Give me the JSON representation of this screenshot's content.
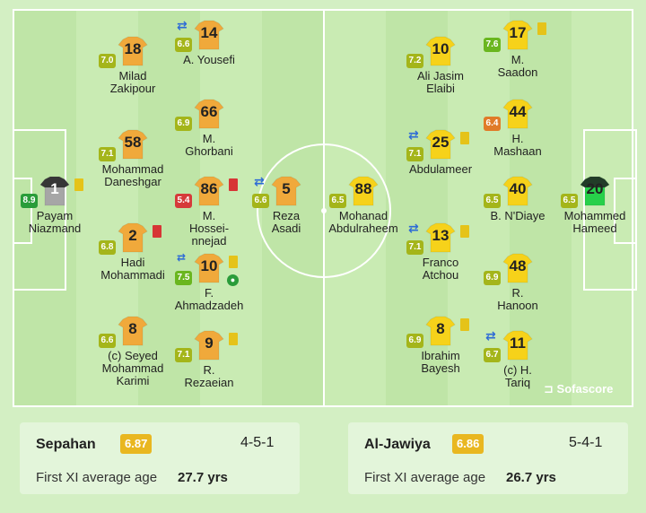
{
  "players": [
    {
      "num": "1",
      "name": [
        "Payam",
        "Niazmand"
      ],
      "rating": "8.9",
      "rcls": "r-dgreen",
      "kit": "grey",
      "card": "yellow",
      "sub": false
    },
    {
      "num": "18",
      "name": [
        "Milad",
        "Zakipour"
      ],
      "rating": "7.0",
      "rcls": "r-olive",
      "kit": "orange",
      "card": "",
      "sub": false
    },
    {
      "num": "58",
      "name": [
        "Mohammad",
        "Daneshgar"
      ],
      "rating": "7.1",
      "rcls": "r-olive",
      "kit": "orange",
      "card": "",
      "sub": false
    },
    {
      "num": "2",
      "name": [
        "Hadi",
        "Mohammadi"
      ],
      "rating": "6.8",
      "rcls": "r-olive",
      "kit": "orange",
      "card": "red",
      "sub": false
    },
    {
      "num": "8",
      "name": [
        "(c) Seyed",
        "Mohammad",
        "Karimi"
      ],
      "rating": "6.6",
      "rcls": "r-olive",
      "kit": "orange",
      "card": "",
      "sub": false
    },
    {
      "num": "14",
      "name": [
        "A. Yousefi"
      ],
      "rating": "6.6",
      "rcls": "r-olive",
      "kit": "orange",
      "card": "",
      "sub": true
    },
    {
      "num": "66",
      "name": [
        "M.",
        "Ghorbani"
      ],
      "rating": "6.9",
      "rcls": "r-olive",
      "kit": "orange",
      "card": "",
      "sub": false
    },
    {
      "num": "86",
      "name": [
        "M.",
        "Hossei-",
        "nnejad"
      ],
      "rating": "5.4",
      "rcls": "r-red",
      "kit": "orange",
      "card": "red",
      "sub": false
    },
    {
      "num": "10",
      "name": [
        "F.",
        "Ahmadzadeh"
      ],
      "rating": "7.5",
      "rcls": "r-green",
      "kit": "orange",
      "card": "yellow",
      "sub": false,
      "subin": true,
      "goal": true
    },
    {
      "num": "9",
      "name": [
        "R.",
        "Rezaeian"
      ],
      "rating": "7.1",
      "rcls": "r-olive",
      "kit": "orange",
      "card": "yellow",
      "sub": false
    },
    {
      "num": "5",
      "name": [
        "Reza",
        "Asadi"
      ],
      "rating": "6.6",
      "rcls": "r-olive",
      "kit": "orange",
      "card": "",
      "sub": true
    },
    {
      "num": "88",
      "name": [
        "Mohanad",
        "Abdulraheem"
      ],
      "rating": "6.5",
      "rcls": "r-olive",
      "kit": "yellow",
      "card": "",
      "sub": false
    },
    {
      "num": "10",
      "name": [
        "Ali Jasim",
        "Elaibi"
      ],
      "rating": "7.2",
      "rcls": "r-olive",
      "kit": "yellow",
      "card": "",
      "sub": false
    },
    {
      "num": "25",
      "name": [
        "Abdulameer"
      ],
      "rating": "7.1",
      "rcls": "r-olive",
      "kit": "yellow",
      "card": "yellow",
      "sub": true
    },
    {
      "num": "13",
      "name": [
        "Franco",
        "Atchou"
      ],
      "rating": "7.1",
      "rcls": "r-olive",
      "kit": "yellow",
      "card": "yellow",
      "sub": true
    },
    {
      "num": "8",
      "name": [
        "Ibrahim",
        "Bayesh"
      ],
      "rating": "6.9",
      "rcls": "r-olive",
      "kit": "yellow",
      "card": "yellow",
      "sub": false
    },
    {
      "num": "17",
      "name": [
        "M.",
        "Saadon"
      ],
      "rating": "7.6",
      "rcls": "r-green",
      "kit": "yellow",
      "card": "yellow",
      "sub": false
    },
    {
      "num": "44",
      "name": [
        "H.",
        "Mashaan"
      ],
      "rating": "6.4",
      "rcls": "r-orange",
      "kit": "yellow",
      "card": "",
      "sub": false
    },
    {
      "num": "40",
      "name": [
        "B. N'Diaye"
      ],
      "rating": "6.5",
      "rcls": "r-olive",
      "kit": "yellow",
      "card": "",
      "sub": false
    },
    {
      "num": "48",
      "name": [
        "R.",
        "Hanoon"
      ],
      "rating": "6.9",
      "rcls": "r-olive",
      "kit": "yellow",
      "card": "",
      "sub": false
    },
    {
      "num": "11",
      "name": [
        "(c) H.",
        "Tariq"
      ],
      "rating": "6.7",
      "rcls": "r-olive",
      "kit": "yellow",
      "card": "",
      "sub": true
    },
    {
      "num": "20",
      "name": [
        "Mohammed",
        "Hameed"
      ],
      "rating": "6.5",
      "rcls": "r-olive",
      "kit": "green",
      "card": "",
      "sub": false
    }
  ],
  "brand": "Sofascore",
  "home": {
    "name": "Sepahan",
    "rating": "6.87",
    "formation": "4-5-1",
    "age_label": "First XI average age",
    "age": "27.7 yrs"
  },
  "away": {
    "name": "Al-Jawiya",
    "rating": "6.86",
    "formation": "5-4-1",
    "age_label": "First XI average age",
    "age": "26.7 yrs"
  },
  "colors": {
    "orange_kit": "#f0a93b",
    "yellow_kit": "#f6d21a",
    "grey_kit": "#a6a6a6",
    "green_kit": "#27d04a",
    "pitch": "#c9ebb3"
  }
}
